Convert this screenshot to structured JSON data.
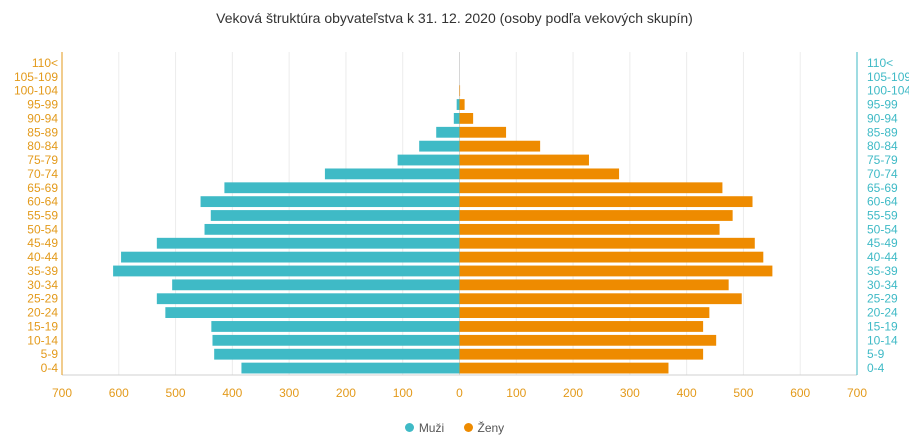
{
  "chart_data": {
    "type": "bar",
    "orientation": "horizontal",
    "layout": "population-pyramid",
    "title": "Veková štruktúra obyvateľstva k 31. 12. 2020 (osoby podľa vekových skupín)",
    "categories": [
      "0-4",
      "5-9",
      "10-14",
      "15-19",
      "20-24",
      "25-29",
      "30-34",
      "35-39",
      "40-44",
      "45-49",
      "50-54",
      "55-59",
      "60-64",
      "65-69",
      "70-74",
      "75-79",
      "80-84",
      "85-89",
      "90-94",
      "95-99",
      "100-104",
      "105-109",
      "110<"
    ],
    "series": [
      {
        "name": "Muži",
        "color": "#3fbac6",
        "side": "left",
        "values": [
          384,
          432,
          435,
          437,
          518,
          533,
          506,
          610,
          596,
          533,
          449,
          438,
          456,
          414,
          237,
          109,
          71,
          41,
          10,
          5,
          0,
          0,
          0
        ]
      },
      {
        "name": "Ženy",
        "color": "#ee8b00",
        "side": "right",
        "values": [
          368,
          429,
          452,
          429,
          440,
          497,
          474,
          551,
          535,
          520,
          458,
          481,
          516,
          463,
          281,
          228,
          142,
          82,
          24,
          9,
          1,
          0,
          0
        ]
      }
    ],
    "xlim": [
      -700,
      700
    ],
    "xticks": [
      "700",
      "600",
      "500",
      "400",
      "300",
      "200",
      "100",
      "0",
      "100",
      "200",
      "300",
      "400",
      "500",
      "600",
      "700"
    ],
    "axis_label_colors": {
      "left": "#e39a1b",
      "right": "#3fbac6",
      "bottom": "#e39a1b"
    },
    "grid": "vertical",
    "legend_position": "bottom-center"
  }
}
